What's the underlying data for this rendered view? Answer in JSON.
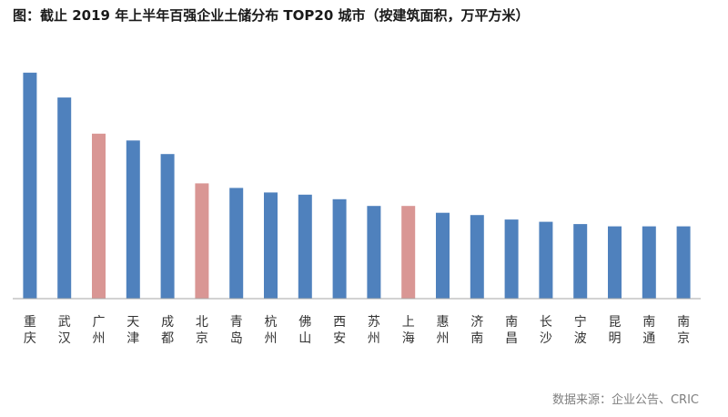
{
  "title": "图：截止 2019 年上半年百强企业土储分布 TOP20 城市（按建筑面积，万平方米）",
  "source": "数据来源：企业公告、CRIC",
  "colors": {
    "default": "#4f81bd",
    "highlight": "#d99694",
    "axis": "#a6a6a6"
  },
  "chart_data": {
    "type": "bar",
    "title": "图：截止 2019 年上半年百强企业土储分布 TOP20 城市（按建筑面积，万平方米）",
    "categories": [
      "重庆",
      "武汉",
      "广州",
      "天津",
      "成都",
      "北京",
      "青岛",
      "杭州",
      "佛山",
      "西安",
      "苏州",
      "上海",
      "惠州",
      "济南",
      "南昌",
      "长沙",
      "宁波",
      "昆明",
      "南通",
      "南京"
    ],
    "values": [
      100,
      89,
      73,
      70,
      64,
      51,
      49,
      47,
      46,
      44,
      41,
      41,
      38,
      37,
      35,
      34,
      33,
      32,
      32,
      32
    ],
    "highlight": [
      "广州",
      "北京",
      "上海"
    ],
    "ylim": [
      0,
      110
    ],
    "grid": false,
    "legend": "none"
  }
}
